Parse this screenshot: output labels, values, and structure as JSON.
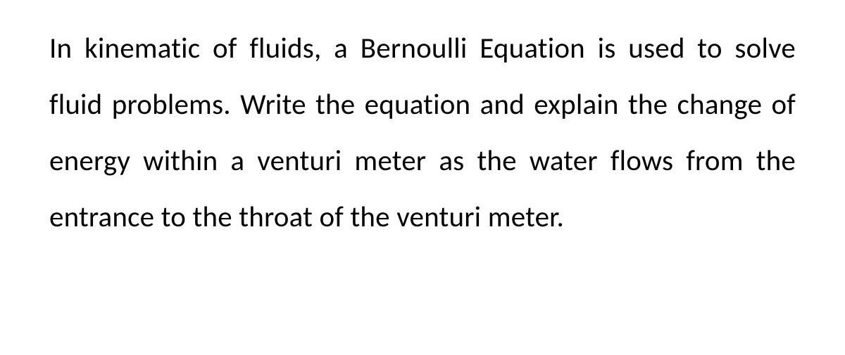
{
  "paragraph": {
    "text": "In kinematic of fluids, a Bernoulli Equation is used to solve fluid problems. Write the equation and explain the change of energy within a venturi meter as the water flows from the entrance to the throat of the venturi meter."
  }
}
